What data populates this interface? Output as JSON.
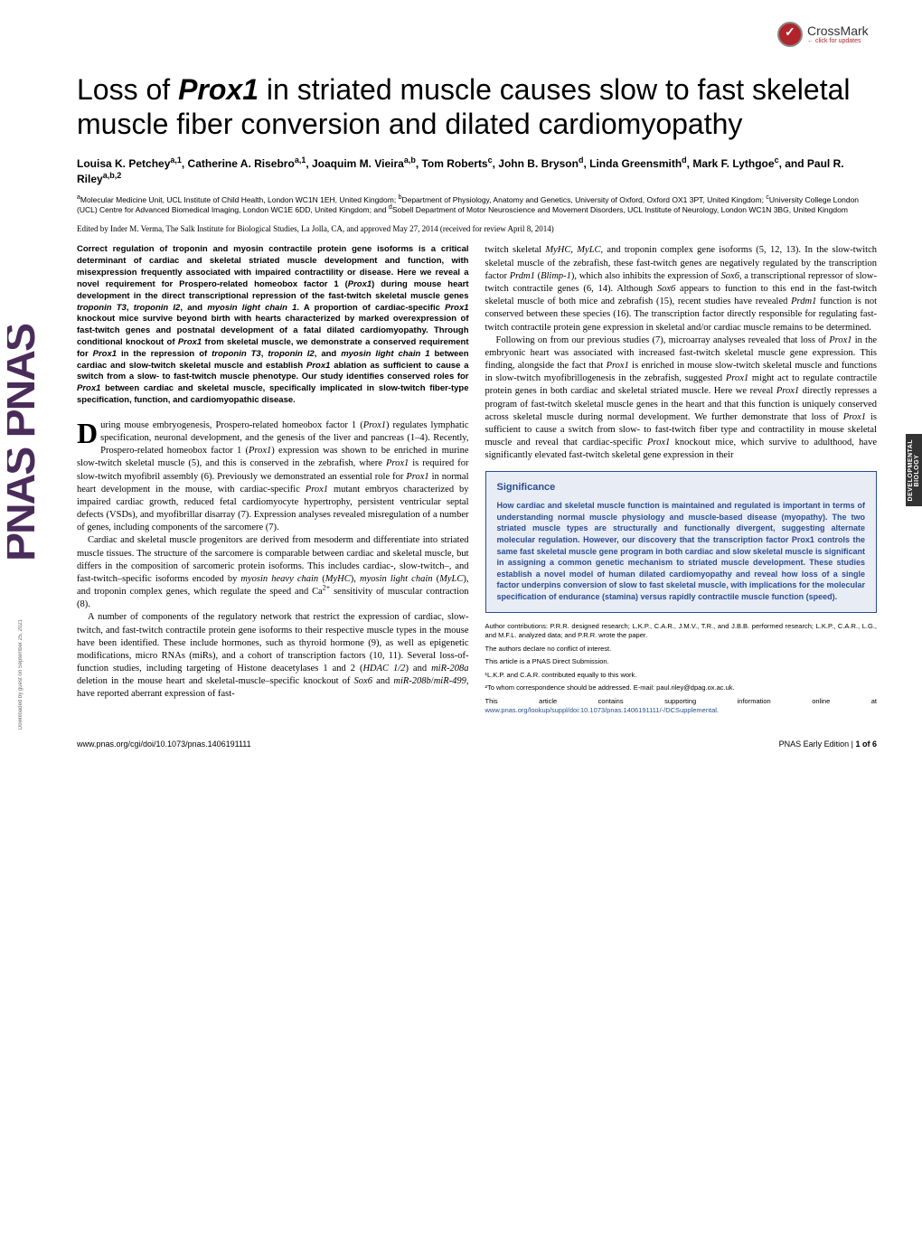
{
  "crossmark": {
    "main": "CrossMark",
    "sub": "← click for updates"
  },
  "title_parts": [
    "Loss of ",
    "Prox1",
    " in striated muscle causes slow to fast skeletal muscle fiber conversion and dilated cardiomyopathy"
  ],
  "authors": "Louisa K. Petchey^a,1, Catherine A. Risebro^a,1, Joaquim M. Vieira^a,b, Tom Roberts^c, John B. Bryson^d, Linda Greensmith^d, Mark F. Lythgoe^c, and Paul R. Riley^a,b,2",
  "affiliations": "^aMolecular Medicine Unit, UCL Institute of Child Health, London WC1N 1EH, United Kingdom; ^bDepartment of Physiology, Anatomy and Genetics, University of Oxford, Oxford OX1 3PT, United Kingdom; ^cUniversity College London (UCL) Centre for Advanced Biomedical Imaging, London WC1E 6DD, United Kingdom; and ^dSobell Department of Motor Neuroscience and Movement Disorders, UCL Institute of Neurology, London WC1N 3BG, United Kingdom",
  "edited": "Edited by Inder M. Verma, The Salk Institute for Biological Studies, La Jolla, CA, and approved May 27, 2014 (received for review April 8, 2014)",
  "abstract": "Correct regulation of troponin and myosin contractile protein gene isoforms is a critical determinant of cardiac and skeletal striated muscle development and function, with misexpression frequently associated with impaired contractility or disease. Here we reveal a novel requirement for Prospero-related homeobox factor 1 (Prox1) during mouse heart development in the direct transcriptional repression of the fast-twitch skeletal muscle genes troponin T3, troponin I2, and myosin light chain 1. A proportion of cardiac-specific Prox1 knockout mice survive beyond birth with hearts characterized by marked overexpression of fast-twitch genes and postnatal development of a fatal dilated cardiomyopathy. Through conditional knockout of Prox1 from skeletal muscle, we demonstrate a conserved requirement for Prox1 in the repression of troponin T3, troponin I2, and myosin light chain 1 between cardiac and slow-twitch skeletal muscle and establish Prox1 ablation as sufficient to cause a switch from a slow- to fast-twitch muscle phenotype. Our study identifies conserved roles for Prox1 between cardiac and skeletal muscle, specifically implicated in slow-twitch fiber-type specification, function, and cardiomyopathic disease.",
  "body_col1_p1": "uring mouse embryogenesis, Prospero-related homeobox factor 1 (Prox1) regulates lymphatic specification, neuronal development, and the genesis of the liver and pancreas (1–4). Recently, Prospero-related homeobox factor 1 (Prox1) expression was shown to be enriched in murine slow-twitch skeletal muscle (5), and this is conserved in the zebrafish, where Prox1 is required for slow-twitch myofibril assembly (6). Previously we demonstrated an essential role for Prox1 in normal heart development in the mouse, with cardiac-specific Prox1 mutant embryos characterized by impaired cardiac growth, reduced fetal cardiomyocyte hypertrophy, persistent ventricular septal defects (VSDs), and myofibrillar disarray (7). Expression analyses revealed misregulation of a number of genes, including components of the sarcomere (7).",
  "body_col1_p2": "Cardiac and skeletal muscle progenitors are derived from mesoderm and differentiate into striated muscle tissues. The structure of the sarcomere is comparable between cardiac and skeletal muscle, but differs in the composition of sarcomeric protein isoforms. This includes cardiac-, slow-twitch–, and fast-twitch–specific isoforms encoded by myosin heavy chain (MyHC), myosin light chain (MyLC), and troponin complex genes, which regulate the speed and Ca²⁺ sensitivity of muscular contraction (8).",
  "body_col1_p3": "A number of components of the regulatory network that restrict the expression of cardiac, slow-twitch, and fast-twitch contractile protein gene isoforms to their respective muscle types in the mouse have been identified. These include hormones, such as thyroid hormone (9), as well as epigenetic modifications, micro RNAs (miRs), and a cohort of transcription factors (10, 11). Several loss-of-function studies, including targeting of Histone deacetylases 1 and 2 (HDAC 1/2) and miR-208a deletion in the mouse heart and skeletal-muscle–specific knockout of Sox6 and miR-208b/miR-499, have reported aberrant expression of fast-",
  "body_col2_p1": "twitch skeletal MyHC, MyLC, and troponin complex gene isoforms (5, 12, 13). In the slow-twitch skeletal muscle of the zebrafish, these fast-twitch genes are negatively regulated by the transcription factor Prdm1 (Blimp-1), which also inhibits the expression of Sox6, a transcriptional repressor of slow-twitch contractile genes (6, 14). Although Sox6 appears to function to this end in the fast-twitch skeletal muscle of both mice and zebrafish (15), recent studies have revealed Prdm1 function is not conserved between these species (16). The transcription factor directly responsible for regulating fast-twitch contractile protein gene expression in skeletal and/or cardiac muscle remains to be determined.",
  "body_col2_p2": "Following on from our previous studies (7), microarray analyses revealed that loss of Prox1 in the embryonic heart was associated with increased fast-twitch skeletal muscle gene expression. This finding, alongside the fact that Prox1 is enriched in mouse slow-twitch skeletal muscle and functions in slow-twitch myofibrillogenesis in the zebrafish, suggested Prox1 might act to regulate contractile protein genes in both cardiac and skeletal striated muscle. Here we reveal Prox1 directly represses a program of fast-twitch skeletal muscle genes in the heart and that this function is uniquely conserved across skeletal muscle during normal development. We further demonstrate that loss of Prox1 is sufficient to cause a switch from slow- to fast-twitch fiber type and contractility in mouse skeletal muscle and reveal that cardiac-specific Prox1 knockout mice, which survive to adulthood, have significantly elevated fast-twitch skeletal gene expression in their",
  "significance": {
    "title": "Significance",
    "text": "How cardiac and skeletal muscle function is maintained and regulated is important in terms of understanding normal muscle physiology and muscle-based disease (myopathy). The two striated muscle types are structurally and functionally divergent, suggesting alternate molecular regulation. However, our discovery that the transcription factor Prox1 controls the same fast skeletal muscle gene program in both cardiac and slow skeletal muscle is significant in assigning a common genetic mechanism to striated muscle development. These studies establish a novel model of human dilated cardiomyopathy and reveal how loss of a single factor underpins conversion of slow to fast skeletal muscle, with implications for the molecular specification of endurance (stamina) versus rapidly contractile muscle function (speed)."
  },
  "footnotes": {
    "contrib": "Author contributions: P.R.R. designed research; L.K.P., C.A.R., J.M.V., T.R., and J.B.B. performed research; L.K.P., C.A.R., L.G., and M.F.L. analyzed data; and P.R.R. wrote the paper.",
    "conflict": "The authors declare no conflict of interest.",
    "direct": "This article is a PNAS Direct Submission.",
    "fn1": "¹L.K.P. and C.A.R. contributed equally to this work.",
    "fn2": "²To whom correspondence should be addressed. E-mail: paul.riley@dpag.ox.ac.uk.",
    "supp_pre": "This article contains supporting information online at ",
    "supp_link": "www.pnas.org/lookup/suppl/doi:10.1073/pnas.1406191111/-/DCSupplemental",
    "supp_post": "."
  },
  "footer": {
    "left": "www.pnas.org/cgi/doi/10.1073/pnas.1406191111",
    "right_pre": "PNAS Early Edition | ",
    "right_bold": "1 of 6"
  },
  "tab": "DEVELOPMENTAL BIOLOGY",
  "download": "Downloaded by guest on September 25, 2021",
  "colors": {
    "crossmark_red": "#b0252a",
    "sig_blue": "#2a4d8f",
    "sig_bg": "#e8ecf5",
    "tab_bg": "#333333"
  }
}
